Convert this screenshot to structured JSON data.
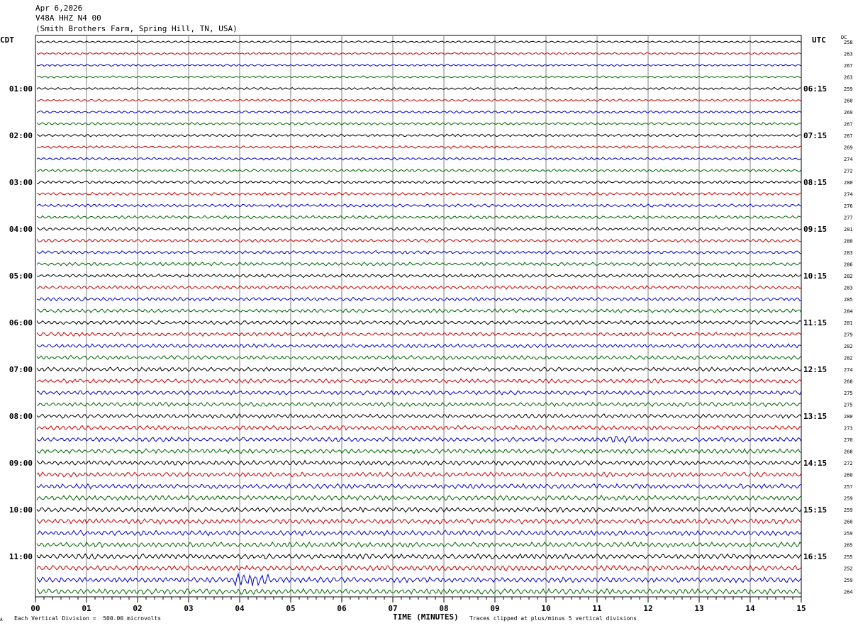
{
  "header": {
    "date": "Apr 6,2026",
    "station": "V48A HHZ N4 00",
    "location": "(Smith Brothers Farm, Spring Hill, TN, USA)"
  },
  "left_timezone": "CDT",
  "right_timezone": "UTC",
  "dc_header": "DC",
  "footer": {
    "scale_note": "Each Vertical Division =  500.00 microvolts",
    "clip_note": "Traces clipped at plus/minus 5 vertical divisions",
    "corner_mark": "A"
  },
  "colors": {
    "trace_cycle": [
      "#000000",
      "#cc0000",
      "#0000cc",
      "#006600"
    ],
    "grid": "#808080",
    "frame": "#000000"
  },
  "chart_data": {
    "type": "line",
    "title": "Apr 6,2026",
    "xlabel": "TIME (MINUTES)",
    "ylabel": "",
    "x_ticks": [
      "00",
      "01",
      "02",
      "03",
      "04",
      "05",
      "06",
      "07",
      "08",
      "09",
      "10",
      "11",
      "12",
      "13",
      "14",
      "15"
    ],
    "xlim": [
      0,
      15
    ],
    "grid": true,
    "traces_per_hour": 4,
    "left_hour_labels": [
      "01:00",
      "02:00",
      "03:00",
      "04:00",
      "05:00",
      "06:00",
      "07:00",
      "08:00",
      "09:00",
      "10:00",
      "11:00"
    ],
    "right_hour_labels": [
      "06:15",
      "07:15",
      "08:15",
      "09:15",
      "10:15",
      "11:15",
      "12:15",
      "13:15",
      "14:15",
      "15:15",
      "16:15"
    ],
    "dc_offsets": [
      258,
      263,
      267,
      263,
      259,
      260,
      269,
      267,
      267,
      269,
      274,
      272,
      280,
      274,
      276,
      277,
      281,
      280,
      283,
      286,
      282,
      283,
      285,
      284,
      281,
      279,
      282,
      282,
      274,
      268,
      275,
      275,
      280,
      273,
      270,
      268,
      272,
      260,
      257,
      259,
      259,
      260,
      259,
      265,
      255,
      252,
      259,
      264
    ],
    "trace_count": 48
  }
}
